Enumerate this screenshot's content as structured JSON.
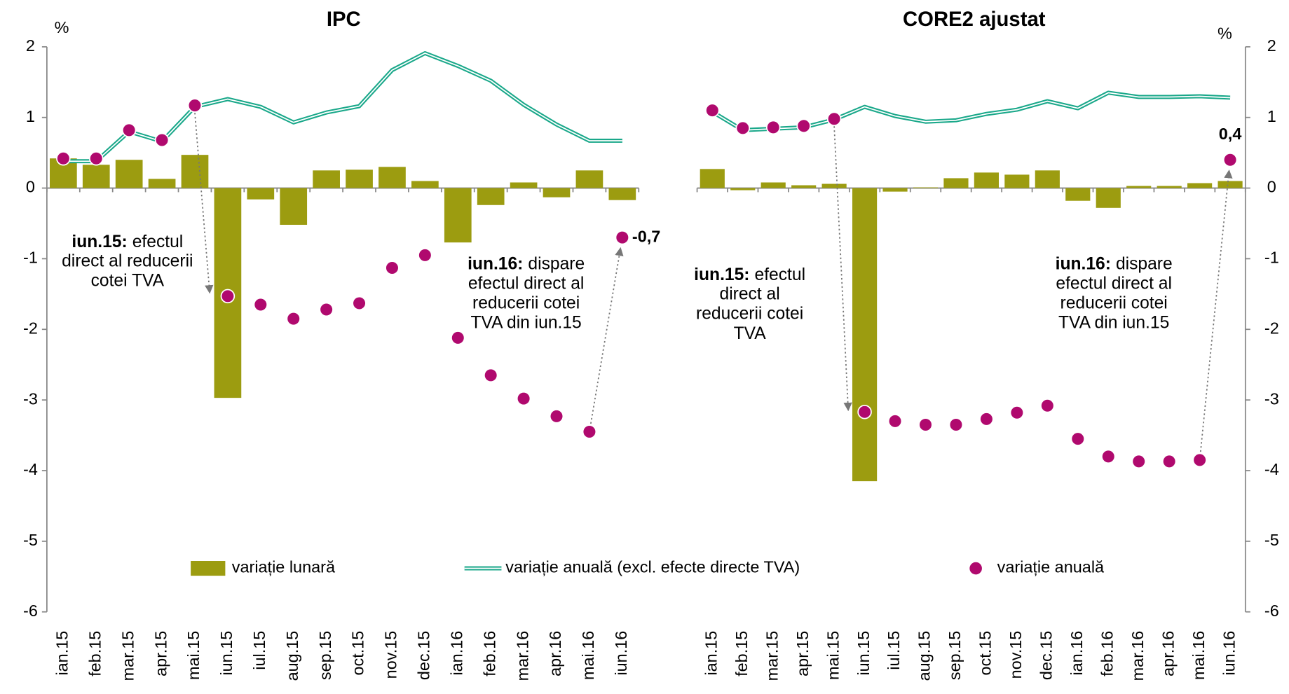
{
  "chart_data": [
    {
      "type": "combo",
      "title": "IPC",
      "y_unit": "%",
      "y_axis_side": "left",
      "categories": [
        "ian.15",
        "feb.15",
        "mar.15",
        "apr.15",
        "mai.15",
        "iun.15",
        "iul.15",
        "aug.15",
        "sep.15",
        "oct.15",
        "nov.15",
        "dec.15",
        "ian.16",
        "feb.16",
        "mar.16",
        "apr.16",
        "mai.16",
        "iun.16"
      ],
      "ylim": [
        -6,
        2
      ],
      "yticks": [
        -6,
        -5,
        -4,
        -3,
        -2,
        -1,
        0,
        1,
        2
      ],
      "series": [
        {
          "name": "variație lunară",
          "type": "bar",
          "color": "#9c9c10",
          "values": [
            0.42,
            0.33,
            0.4,
            0.13,
            0.47,
            -2.97,
            -0.16,
            -0.52,
            0.25,
            0.26,
            0.3,
            0.1,
            -0.77,
            -0.24,
            0.08,
            -0.13,
            0.25,
            -0.17
          ]
        },
        {
          "name": "variație anuală (excl. efecte directe TVA)",
          "type": "line",
          "color": "#1aa88a",
          "values": [
            0.38,
            0.38,
            0.8,
            0.66,
            1.15,
            1.26,
            1.15,
            0.93,
            1.07,
            1.16,
            1.67,
            1.91,
            1.73,
            1.52,
            1.18,
            0.9,
            0.67,
            0.67
          ]
        },
        {
          "name": "variație anuală",
          "type": "scatter",
          "color": "#b0096e",
          "values": [
            0.42,
            0.42,
            0.82,
            0.68,
            1.17,
            -1.53,
            -1.65,
            -1.85,
            -1.72,
            -1.63,
            -1.13,
            -0.95,
            -2.12,
            -2.65,
            -2.98,
            -3.23,
            -3.45,
            -0.7
          ],
          "value_labels": [
            null,
            null,
            null,
            null,
            null,
            null,
            null,
            null,
            null,
            null,
            null,
            null,
            null,
            null,
            null,
            null,
            null,
            "-0,7"
          ]
        }
      ],
      "annotations": [
        {
          "bold": "iun.15:",
          "lines": [
            "efectul",
            "direct al reducerii",
            "cotei TVA"
          ],
          "color": "#9c9c10"
        },
        {
          "bold": "iun.16:",
          "lines": [
            "dispare",
            "efectul direct al",
            "reducerii cotei",
            "TVA din iun.15"
          ],
          "color": "#b0096e"
        }
      ]
    },
    {
      "type": "combo",
      "title": "CORE2 ajustat",
      "y_unit": "%",
      "y_axis_side": "right",
      "categories": [
        "ian.15",
        "feb.15",
        "mar.15",
        "apr.15",
        "mai.15",
        "iun.15",
        "iul.15",
        "aug.15",
        "sep.15",
        "oct.15",
        "nov.15",
        "dec.15",
        "ian.16",
        "feb.16",
        "mar.16",
        "apr.16",
        "mai.16",
        "iun.16"
      ],
      "ylim": [
        -6,
        2
      ],
      "yticks": [
        -6,
        -5,
        -4,
        -3,
        -2,
        -1,
        0,
        1,
        2
      ],
      "series": [
        {
          "type": "bar",
          "color": "#9c9c10",
          "values": [
            0.27,
            -0.03,
            0.08,
            0.04,
            0.06,
            -4.15,
            -0.05,
            0.01,
            0.14,
            0.22,
            0.19,
            0.25,
            -0.18,
            -0.28,
            0.03,
            0.03,
            0.07,
            0.1
          ]
        },
        {
          "type": "line",
          "color": "#1aa88a",
          "values": [
            1.08,
            0.82,
            0.84,
            0.86,
            0.97,
            1.15,
            1.02,
            0.94,
            0.96,
            1.05,
            1.11,
            1.23,
            1.13,
            1.35,
            1.29,
            1.29,
            1.3,
            1.28
          ]
        },
        {
          "type": "scatter",
          "color": "#b0096e",
          "values": [
            1.1,
            0.85,
            0.86,
            0.88,
            0.98,
            -3.17,
            -3.3,
            -3.35,
            -3.35,
            -3.27,
            -3.18,
            -3.08,
            -3.55,
            -3.8,
            -3.87,
            -3.87,
            -3.85,
            0.4
          ],
          "value_labels": [
            null,
            null,
            null,
            null,
            null,
            null,
            null,
            null,
            null,
            null,
            null,
            null,
            null,
            null,
            null,
            null,
            null,
            "0,4"
          ]
        }
      ],
      "annotations": [
        {
          "bold": "iun.15:",
          "lines": [
            "efectul",
            "direct al",
            "reducerii cotei",
            "TVA"
          ],
          "color": "#9c9c10"
        },
        {
          "bold": "iun.16:",
          "lines": [
            "dispare",
            "efectul direct al",
            "reducerii cotei",
            "TVA din iun.15"
          ],
          "color": "#b0096e"
        }
      ]
    }
  ]
}
